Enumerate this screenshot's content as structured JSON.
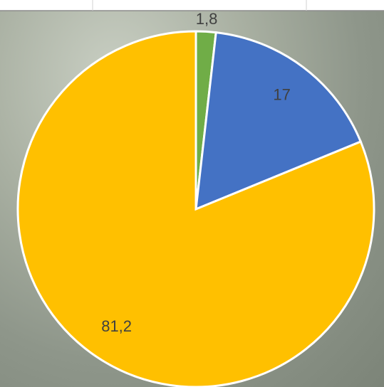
{
  "chart_data": {
    "type": "pie",
    "values": [
      1.8,
      17,
      81.2
    ],
    "value_labels": [
      "1,8",
      "17",
      "81,2"
    ],
    "colors": [
      "#70ad47",
      "#4472c4",
      "#ffc000"
    ]
  }
}
